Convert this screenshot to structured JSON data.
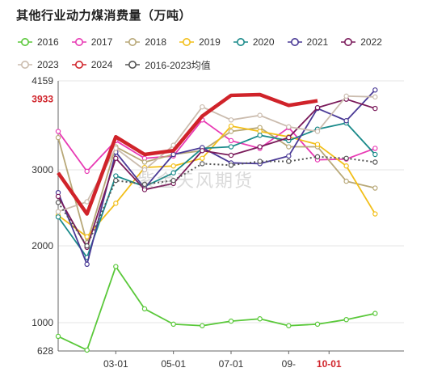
{
  "title": "其他行业动力煤消费量（万吨）",
  "watermark": "紫金天风期货",
  "chart_data": {
    "type": "line",
    "title": "其他行业动力煤消费量（万吨）",
    "ylim": [
      628,
      4159
    ],
    "y_tick_labels": [
      628,
      1000,
      2000,
      3000,
      4159
    ],
    "x_tick_labels": [
      "03-01",
      "05-01",
      "07-01",
      "09-",
      "10-01"
    ],
    "highlight_x_label": "10-01",
    "highlight_y_value": 3933,
    "highlight_color": "#d0232a",
    "x_points": 13,
    "series": [
      {
        "name": "2016",
        "color": "#5ac83a",
        "values": [
          820,
          640,
          1730,
          1180,
          980,
          960,
          1020,
          1050,
          960,
          980,
          1040,
          1120
        ]
      },
      {
        "name": "2017",
        "color": "#e83ab4",
        "values": [
          3500,
          2980,
          3380,
          3150,
          3180,
          3650,
          3380,
          3280,
          3550,
          3130,
          3140,
          3280
        ]
      },
      {
        "name": "2018",
        "color": "#b8a878",
        "values": [
          3420,
          2040,
          3300,
          3100,
          3200,
          3250,
          3500,
          3550,
          3300,
          3300,
          2850,
          2760
        ]
      },
      {
        "name": "2019",
        "color": "#f2bf1a",
        "values": [
          2400,
          2120,
          2560,
          3030,
          3050,
          3150,
          3570,
          3500,
          3430,
          3330,
          3050,
          2420
        ]
      },
      {
        "name": "2020",
        "color": "#1a8a8a",
        "values": [
          2380,
          1850,
          2920,
          2780,
          2960,
          3280,
          3300,
          3450,
          3380,
          3530,
          3610,
          3200
        ]
      },
      {
        "name": "2021",
        "color": "#4a3a96",
        "values": [
          2700,
          1760,
          3230,
          2760,
          3200,
          3290,
          3090,
          3080,
          3180,
          3800,
          3640,
          4040
        ]
      },
      {
        "name": "2022",
        "color": "#7a1a5a",
        "values": [
          2650,
          1980,
          3150,
          2740,
          2820,
          3250,
          3190,
          3300,
          3420,
          3810,
          3920,
          3800
        ]
      },
      {
        "name": "2023",
        "color": "#cbbcae",
        "values": [
          2450,
          2580,
          3280,
          3000,
          3320,
          3820,
          3650,
          3710,
          3560,
          3500,
          3960,
          3950
        ]
      },
      {
        "name": "2024",
        "color": "#d0232a",
        "values": [
          2960,
          2420,
          3430,
          3200,
          3250,
          3700,
          3970,
          3980,
          3840,
          3900
        ]
      },
      {
        "name": "2016-2023均值",
        "color": "#555555",
        "dotted": true,
        "values": [
          2570,
          2000,
          2860,
          2810,
          2860,
          3080,
          3060,
          3110,
          3110,
          3170,
          3150,
          3100
        ]
      }
    ]
  }
}
